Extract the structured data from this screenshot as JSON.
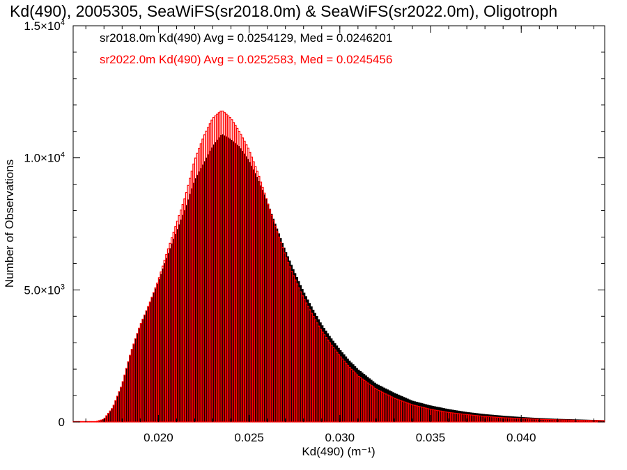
{
  "chart_data": {
    "type": "bar",
    "title": "Kd(490), 2005305, SeaWiFS(sr2018.0m) & SeaWiFS(sr2022.0m), Oligotroph",
    "xlabel": "Kd(490) (m⁻¹)",
    "ylabel": "Number of Observations",
    "xlim": [
      0.0153,
      0.0446
    ],
    "ylim": [
      0,
      15000
    ],
    "x_ticks": [
      0.02,
      0.025,
      0.03,
      0.035,
      0.04
    ],
    "x_tick_labels": [
      "0.020",
      "0.025",
      "0.030",
      "0.035",
      "0.040"
    ],
    "y_ticks": [
      0,
      5000,
      10000,
      15000
    ],
    "y_tick_labels": [
      {
        "mantissa": "0",
        "exponent": ""
      },
      {
        "mantissa": "5.0×10",
        "exponent": "3"
      },
      {
        "mantissa": "1.0×10",
        "exponent": "4"
      },
      {
        "mantissa": "1.5×10",
        "exponent": "4"
      }
    ],
    "bin_width": 0.0001,
    "legend": [
      {
        "text": "sr2018.0m Kd(490) Avg = 0.0254129, Med = 0.0246201",
        "color": "#000000"
      },
      {
        "text": "sr2022.0m Kd(490) Avg = 0.0252583, Med = 0.0245456",
        "color": "#ff0000"
      }
    ],
    "legend_placement": "top-left",
    "series": [
      {
        "name": "sr2018.0m",
        "color": "#000000",
        "x": [
          0.0165,
          0.017,
          0.0175,
          0.018,
          0.0185,
          0.019,
          0.0195,
          0.02,
          0.0205,
          0.021,
          0.0215,
          0.022,
          0.0225,
          0.023,
          0.0235,
          0.024,
          0.0245,
          0.025,
          0.0255,
          0.026,
          0.0265,
          0.027,
          0.0275,
          0.028,
          0.0285,
          0.029,
          0.0295,
          0.03,
          0.0305,
          0.031,
          0.032,
          0.033,
          0.034,
          0.035,
          0.036,
          0.037,
          0.038,
          0.039,
          0.04,
          0.041,
          0.042,
          0.043,
          0.044,
          0.0446
        ],
        "values": [
          0,
          100,
          550,
          1400,
          2650,
          3650,
          4450,
          5300,
          6300,
          7200,
          8100,
          9150,
          9800,
          10450,
          10900,
          10700,
          10400,
          9900,
          9200,
          8350,
          7400,
          6500,
          5700,
          4950,
          4300,
          3700,
          3200,
          2750,
          2350,
          2000,
          1450,
          1100,
          800,
          620,
          480,
          370,
          290,
          230,
          180,
          140,
          110,
          90,
          70,
          60
        ]
      },
      {
        "name": "sr2022.0m",
        "color": "#ff0000",
        "x": [
          0.0165,
          0.017,
          0.0175,
          0.018,
          0.0185,
          0.019,
          0.0195,
          0.02,
          0.0205,
          0.021,
          0.0215,
          0.022,
          0.0225,
          0.023,
          0.0235,
          0.024,
          0.0245,
          0.025,
          0.0255,
          0.026,
          0.0265,
          0.027,
          0.0275,
          0.028,
          0.0285,
          0.029,
          0.0295,
          0.03,
          0.0305,
          0.031,
          0.032,
          0.033,
          0.034,
          0.035,
          0.036,
          0.037,
          0.038,
          0.039,
          0.04,
          0.041,
          0.042,
          0.043,
          0.044,
          0.0446
        ],
        "values": [
          0,
          100,
          550,
          1400,
          2650,
          3650,
          4450,
          5350,
          6450,
          7500,
          8550,
          9900,
          10800,
          11500,
          11800,
          11500,
          10950,
          10300,
          9400,
          8350,
          7300,
          6300,
          5450,
          4700,
          4050,
          3450,
          2950,
          2500,
          2100,
          1750,
          1250,
          900,
          650,
          480,
          360,
          280,
          210,
          160,
          130,
          100,
          80,
          65,
          55,
          50
        ]
      }
    ]
  }
}
